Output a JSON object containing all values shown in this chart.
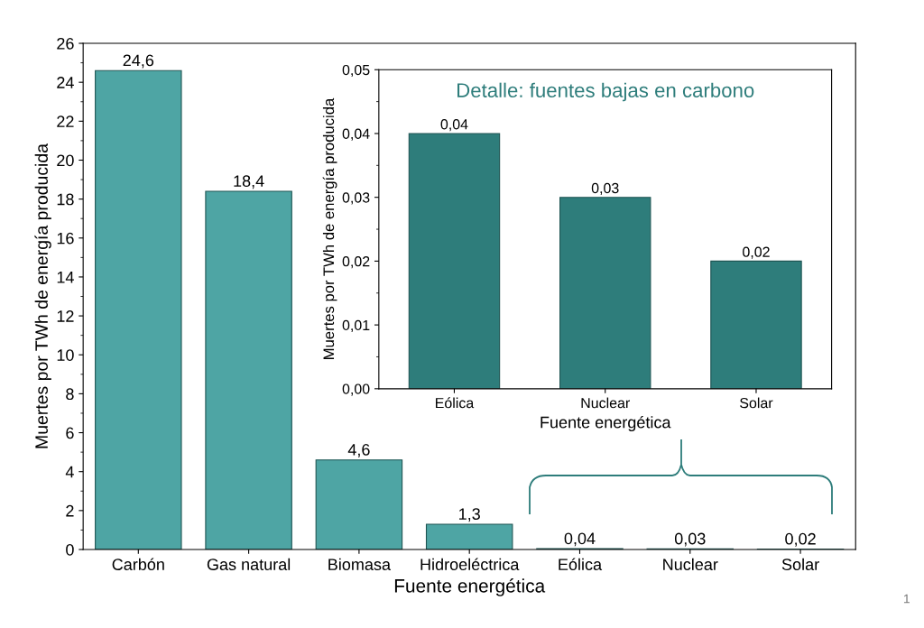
{
  "chart_data": [
    {
      "type": "bar",
      "xlabel": "Fuente energética",
      "ylabel": "Muertes por TWh de energía producida",
      "categories": [
        "Carbón",
        "Gas natural",
        "Biomasa",
        "Hidroeléctrica",
        "Eólica",
        "Nuclear",
        "Solar"
      ],
      "values": [
        24.6,
        18.4,
        4.6,
        1.3,
        0.04,
        0.03,
        0.02
      ],
      "value_labels": [
        "24,6",
        "18,4",
        "4,6",
        "1,3",
        "0,04",
        "0,03",
        "0,02"
      ],
      "color": "#4ea5a4",
      "ylim": [
        0,
        26
      ],
      "yticks": [
        0,
        2,
        4,
        6,
        8,
        10,
        12,
        14,
        16,
        18,
        20,
        22,
        24,
        26
      ],
      "grid": false,
      "annotations": [
        "1"
      ]
    },
    {
      "type": "bar",
      "title": "Detalle: fuentes bajas en carbono",
      "xlabel": "Fuente energética",
      "ylabel": "Muertes por TWh de energía producida",
      "categories": [
        "Eólica",
        "Nuclear",
        "Solar"
      ],
      "values": [
        0.04,
        0.03,
        0.02
      ],
      "value_labels": [
        "0,04",
        "0,03",
        "0,02"
      ],
      "color": "#2e7d7b",
      "ylim": [
        0,
        0.05
      ],
      "yticks": [
        {
          "value": 0,
          "label": "0,00"
        },
        {
          "value": 0.01,
          "label": "0,01"
        },
        {
          "value": 0.02,
          "label": "0,02"
        },
        {
          "value": 0.03,
          "label": "0,03"
        },
        {
          "value": 0.04,
          "label": "0,04"
        },
        {
          "value": 0.05,
          "label": "0,05"
        }
      ],
      "grid": false
    }
  ]
}
